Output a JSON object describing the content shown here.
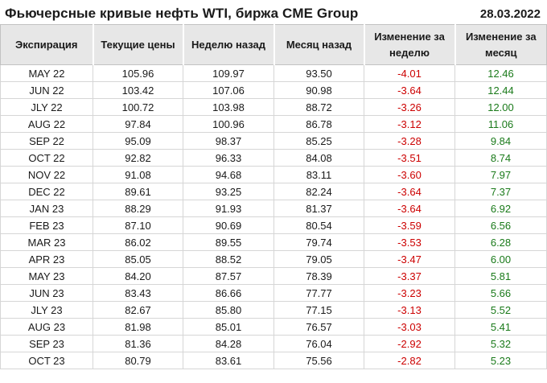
{
  "header": {
    "title": "Фьючерсные кривые нефть WTI, биржа CME Group",
    "date": "28.03.2022"
  },
  "colors": {
    "negative": "#cc0000",
    "positive": "#1a7a1a",
    "header_bg": "#e7e7e7",
    "grid": "#d6d6d6"
  },
  "chart_data": {
    "type": "table",
    "title": "Фьючерсные кривые нефть WTI, биржа CME Group",
    "date": "28.03.2022",
    "columns": [
      "Экспирация",
      "Текущие цены",
      "Неделю назад",
      "Месяц назад",
      "Изменение за неделю",
      "Изменение за месяц"
    ],
    "rows": [
      [
        "MAY 22",
        "105.96",
        "109.97",
        "93.50",
        "-4.01",
        "12.46"
      ],
      [
        "JUN 22",
        "103.42",
        "107.06",
        "90.98",
        "-3.64",
        "12.44"
      ],
      [
        "JLY 22",
        "100.72",
        "103.98",
        "88.72",
        "-3.26",
        "12.00"
      ],
      [
        "AUG 22",
        "97.84",
        "100.96",
        "86.78",
        "-3.12",
        "11.06"
      ],
      [
        "SEP 22",
        "95.09",
        "98.37",
        "85.25",
        "-3.28",
        "9.84"
      ],
      [
        "OCT 22",
        "92.82",
        "96.33",
        "84.08",
        "-3.51",
        "8.74"
      ],
      [
        "NOV 22",
        "91.08",
        "94.68",
        "83.11",
        "-3.60",
        "7.97"
      ],
      [
        "DEC 22",
        "89.61",
        "93.25",
        "82.24",
        "-3.64",
        "7.37"
      ],
      [
        "JAN 23",
        "88.29",
        "91.93",
        "81.37",
        "-3.64",
        "6.92"
      ],
      [
        "FEB 23",
        "87.10",
        "90.69",
        "80.54",
        "-3.59",
        "6.56"
      ],
      [
        "MAR 23",
        "86.02",
        "89.55",
        "79.74",
        "-3.53",
        "6.28"
      ],
      [
        "APR 23",
        "85.05",
        "88.52",
        "79.05",
        "-3.47",
        "6.00"
      ],
      [
        "MAY 23",
        "84.20",
        "87.57",
        "78.39",
        "-3.37",
        "5.81"
      ],
      [
        "JUN 23",
        "83.43",
        "86.66",
        "77.77",
        "-3.23",
        "5.66"
      ],
      [
        "JLY 23",
        "82.67",
        "85.80",
        "77.15",
        "-3.13",
        "5.52"
      ],
      [
        "AUG 23",
        "81.98",
        "85.01",
        "76.57",
        "-3.03",
        "5.41"
      ],
      [
        "SEP 23",
        "81.36",
        "84.28",
        "76.04",
        "-2.92",
        "5.32"
      ],
      [
        "OCT 23",
        "80.79",
        "83.61",
        "75.56",
        "-2.82",
        "5.23"
      ]
    ]
  }
}
